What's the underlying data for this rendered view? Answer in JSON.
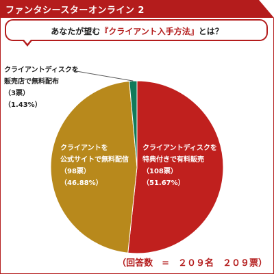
{
  "header": {
    "title": "ファンタシースターオンライン 2"
  },
  "question": {
    "prefix": "あなたが望む",
    "highlight": "『クライアント入手方法』",
    "suffix": "とは？"
  },
  "colors": {
    "brand": "#b41c1c",
    "slice_red": "#c0201e",
    "slice_gold": "#b8891c",
    "slice_teal": "#117a5a"
  },
  "chart_data": {
    "type": "pie",
    "total_label": "（回答数　=　２０９名　２０９票）",
    "slices": [
      {
        "label_lines": [
          "クライアントディスクを",
          "特典付きで有料販売"
        ],
        "count_label": "（108票）",
        "percent_label": "（51.67%）",
        "votes": 108,
        "percent": 51.67,
        "color": "#c0201e"
      },
      {
        "label_lines": [
          "クライアントを",
          "公式サイトで無料配信"
        ],
        "count_label": "（98票）",
        "percent_label": "（46.88%）",
        "votes": 98,
        "percent": 46.88,
        "color": "#b8891c"
      },
      {
        "label_lines": [
          "クライアントディスクを",
          "販売店で無料配布"
        ],
        "count_label": "（3票）",
        "percent_label": "（1.43%）",
        "votes": 3,
        "percent": 1.43,
        "color": "#117a5a"
      }
    ]
  }
}
